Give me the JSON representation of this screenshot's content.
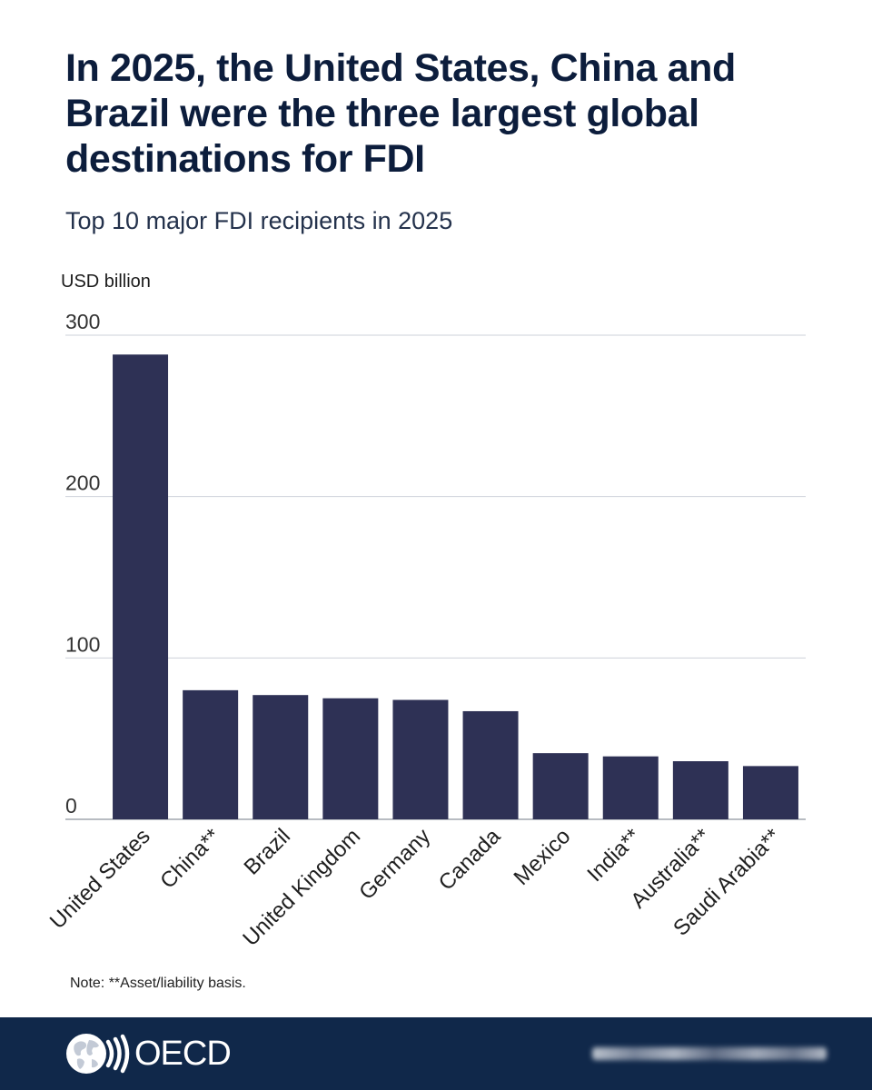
{
  "chart_data": {
    "type": "bar",
    "title": "In 2025, the United States, China and Brazil were the three largest global destinations for FDI",
    "subtitle": "Top 10 major FDI recipients in 2025",
    "xlabel": "",
    "ylabel": "USD billion",
    "categories": [
      "United States",
      "China**",
      "Brazil",
      "United Kingdom",
      "Germany",
      "Canada",
      "Mexico",
      "India**",
      "Australia**",
      "Saudi Arabia**"
    ],
    "values": [
      288,
      80,
      77,
      75,
      74,
      67,
      41,
      39,
      36,
      33
    ],
    "ylim": [
      0,
      300
    ],
    "yticks": [
      0,
      100,
      200,
      300
    ],
    "grid": true,
    "colors": {
      "bar": "#2e3155",
      "grid": "#cdd1d9",
      "axis": "#8e939e"
    }
  },
  "note": "Note: **Asset/liability basis.",
  "footer": {
    "logo_text": "OECD",
    "logo_icon": "oecd-globe-icon",
    "background": "#10284a"
  }
}
